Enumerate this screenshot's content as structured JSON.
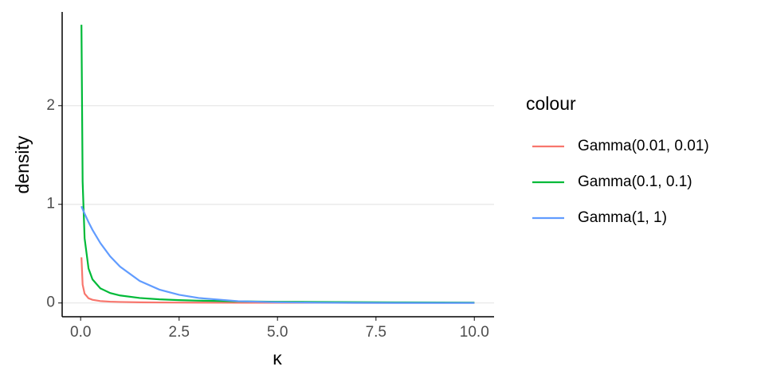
{
  "chart_data": {
    "type": "line",
    "x_label": "κ",
    "y_label": "density",
    "legend_title": "colour",
    "x": [
      0.02,
      0.05,
      0.1,
      0.2,
      0.3,
      0.5,
      0.75,
      1,
      1.5,
      2,
      2.5,
      3,
      4,
      5,
      6,
      7,
      8,
      10
    ],
    "series": [
      {
        "name": "Gamma(0.01, 0.01)",
        "color": "#F8766D",
        "values": [
          0.462,
          0.186,
          0.094,
          0.047,
          0.032,
          0.019,
          0.0128,
          0.0096,
          0.0064,
          0.0048,
          0.0039,
          0.0032,
          0.0024,
          0.0019,
          0.0016,
          0.0014,
          0.0012,
          0.00096
        ]
      },
      {
        "name": "Gamma(0.1, 0.1)",
        "color": "#00BA38",
        "values": [
          2.82,
          1.23,
          0.656,
          0.349,
          0.239,
          0.148,
          0.1,
          0.0756,
          0.0499,
          0.0367,
          0.0285,
          0.023,
          0.0161,
          0.0119,
          0.0091,
          0.0072,
          0.0058,
          0.0039
        ]
      },
      {
        "name": "Gamma(1, 1)",
        "color": "#619CFF",
        "values": [
          0.98,
          0.951,
          0.905,
          0.819,
          0.741,
          0.607,
          0.472,
          0.368,
          0.223,
          0.135,
          0.082,
          0.05,
          0.018,
          0.0067,
          0.0025,
          0.0009,
          0.0003,
          5e-05
        ]
      }
    ],
    "xlim": [
      -0.47,
      10.5
    ],
    "ylim": [
      -0.14,
      2.95
    ],
    "xticks": [
      {
        "value": 0,
        "label": "0.0"
      },
      2.5,
      {
        "value": 5,
        "label": "5.0"
      },
      7.5,
      {
        "value": 10,
        "label": "10.0"
      }
    ],
    "yticks": [
      0,
      1,
      2
    ],
    "grid": true
  }
}
